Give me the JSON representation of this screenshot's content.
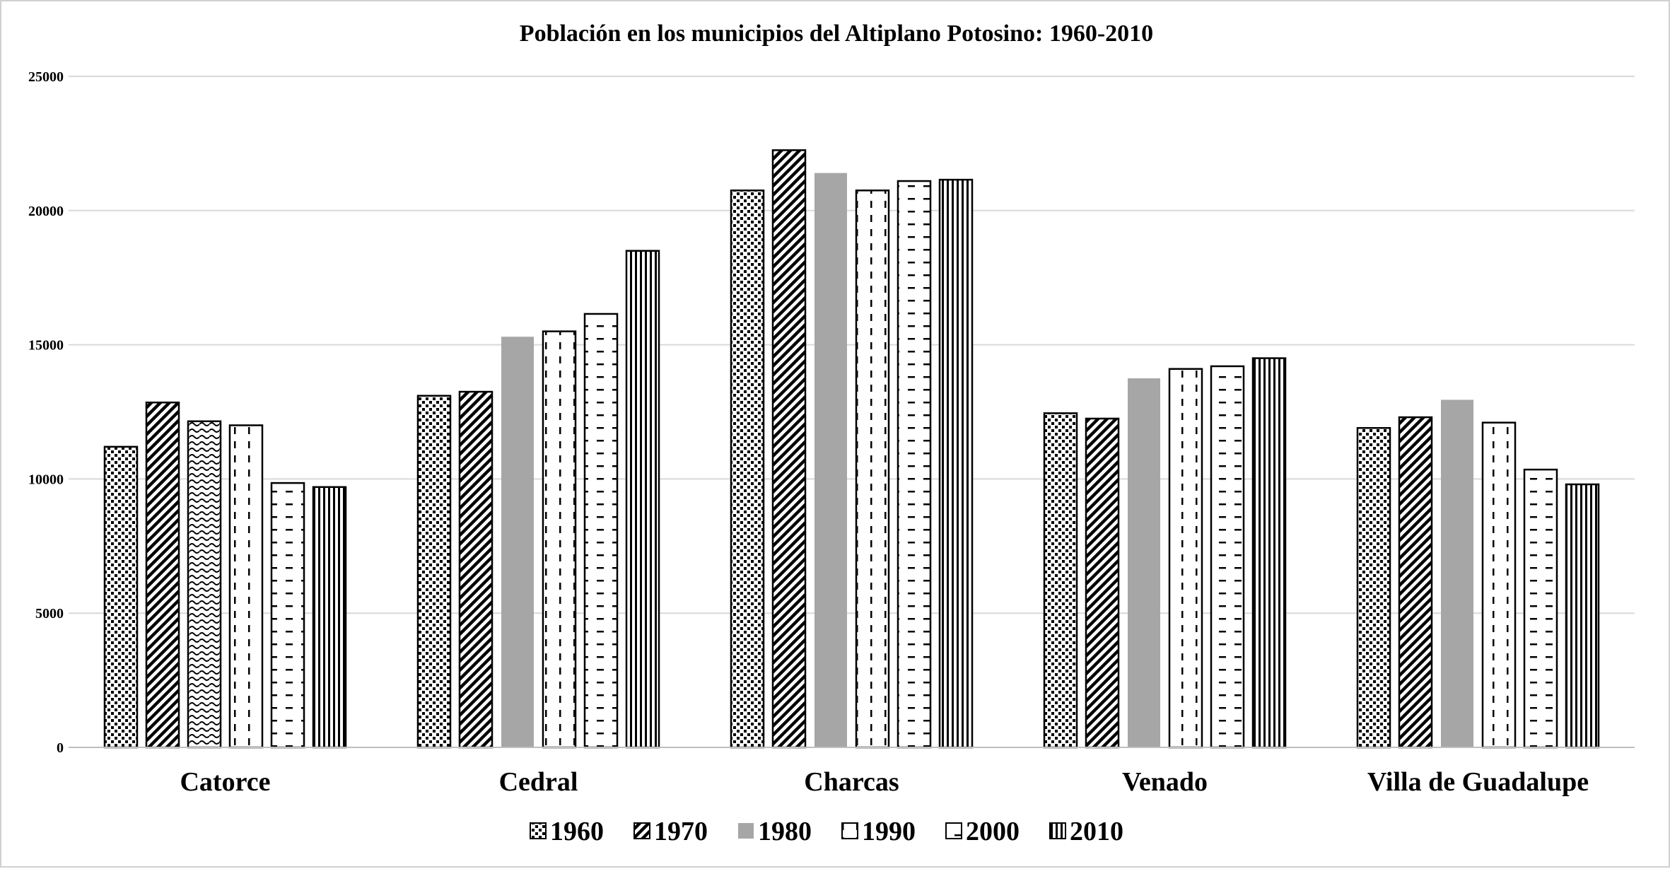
{
  "chart_data": {
    "type": "bar",
    "title": "Población en los municipios del Altiplano Potosino: 1960-2010",
    "xlabel": "",
    "ylabel": "",
    "ylim": [
      0,
      25000
    ],
    "yticks": [
      "0",
      "5000",
      "10000",
      "15000",
      "20000",
      "25000"
    ],
    "grid": true,
    "legend_position": "bottom",
    "categories": [
      "Catorce",
      "Cedral",
      "Charcas",
      "Venado",
      "Villa de Guadalupe"
    ],
    "series": [
      {
        "name": "1960",
        "pattern": "dots",
        "values": [
          11200,
          13100,
          20750,
          12450,
          11900
        ]
      },
      {
        "name": "1970",
        "pattern": "diagonal-stripes",
        "values": [
          12850,
          13250,
          22250,
          12250,
          12300
        ]
      },
      {
        "name": "1980",
        "pattern": "solid-gray",
        "values": [
          12150,
          15300,
          21400,
          13750,
          12950
        ]
      },
      {
        "name": "1990",
        "pattern": "vertical-dashes",
        "values": [
          12000,
          15500,
          20750,
          14100,
          12100
        ]
      },
      {
        "name": "2000",
        "pattern": "horizontal-dashes",
        "values": [
          9850,
          16150,
          21100,
          14200,
          10350
        ]
      },
      {
        "name": "2010",
        "pattern": "vertical-lines",
        "values": [
          9700,
          18500,
          21150,
          14500,
          9800
        ]
      }
    ],
    "colors": {
      "bar_outline": "#000000",
      "solid_gray": "#a6a6a6",
      "gridline": "#d9d9d9",
      "axis": "#bfbfbf",
      "text": "#000000"
    }
  }
}
